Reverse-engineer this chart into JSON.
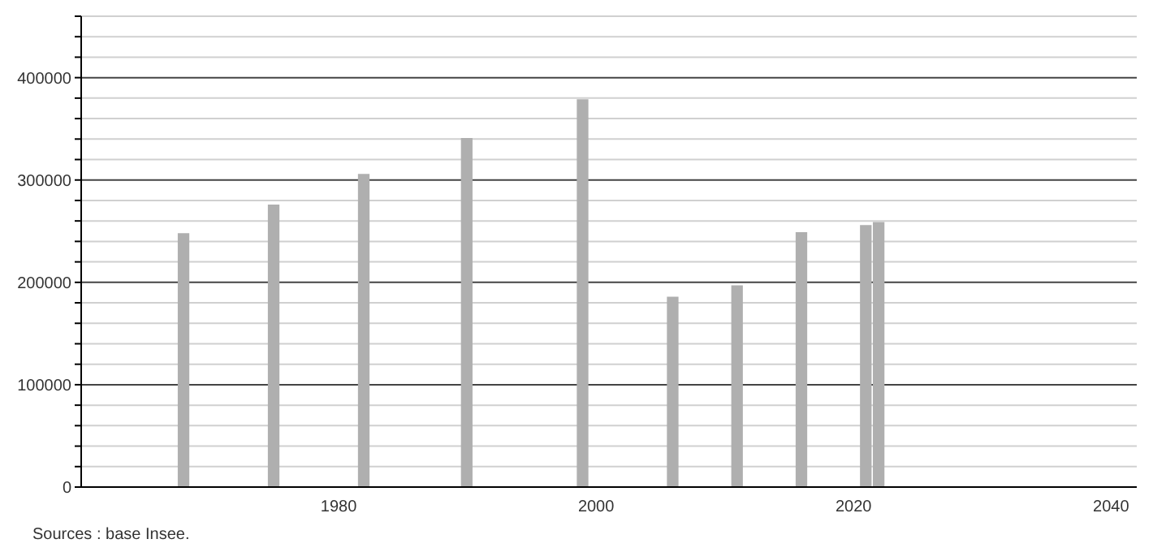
{
  "chart_data": {
    "type": "bar",
    "x": [
      1968,
      1975,
      1982,
      1990,
      1999,
      2006,
      2011,
      2016,
      2021,
      2022
    ],
    "values": [
      248000,
      276000,
      306000,
      341000,
      379000,
      186000,
      197000,
      249000,
      256000,
      259000
    ],
    "color": "#afafaf",
    "xlim": [
      1960,
      2042
    ],
    "xticks": [
      1980,
      2000,
      2020,
      2040
    ],
    "ylim": [
      0,
      460000
    ],
    "yticks": [
      0,
      {
        "value": 20000,
        "label": null
      },
      {
        "value": 40000,
        "label": null
      },
      {
        "value": 60000,
        "label": null
      },
      {
        "value": 80000,
        "label": null
      },
      100000,
      {
        "value": 120000,
        "label": null
      },
      {
        "value": 140000,
        "label": null
      },
      {
        "value": 160000,
        "label": null
      },
      {
        "value": 180000,
        "label": null
      },
      200000,
      {
        "value": 220000,
        "label": null
      },
      {
        "value": 240000,
        "label": null
      },
      {
        "value": 260000,
        "label": null
      },
      {
        "value": 280000,
        "label": null
      },
      300000,
      {
        "value": 320000,
        "label": null
      },
      {
        "value": 340000,
        "label": null
      },
      {
        "value": 360000,
        "label": null
      },
      {
        "value": 380000,
        "label": null
      },
      400000,
      {
        "value": 420000,
        "label": null
      },
      {
        "value": 440000,
        "label": null
      },
      {
        "value": 460000,
        "label": null
      }
    ],
    "grid": "y",
    "annotations": [
      "Sources : base Insee."
    ]
  }
}
